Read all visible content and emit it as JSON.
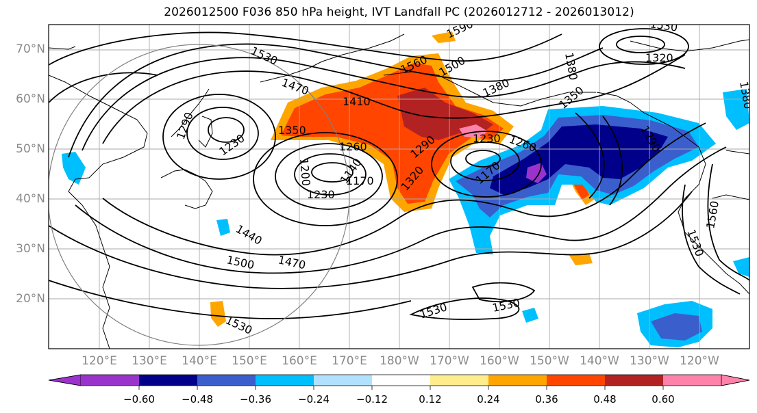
{
  "title": "2026012500 F036 850 hPa height, IVT Landfall PC (2026012712 - 2026013012)",
  "map": {
    "lat_labels": [
      "70°N",
      "60°N",
      "50°N",
      "40°N",
      "30°N",
      "20°N"
    ],
    "lon_labels": [
      "120°E",
      "130°E",
      "140°E",
      "150°E",
      "160°E",
      "170°E",
      "180°W",
      "170°W",
      "160°W",
      "150°W",
      "140°W",
      "130°W",
      "120°W"
    ],
    "contour_labels": [
      "1590",
      "1530",
      "1560",
      "1500",
      "1470",
      "1410",
      "1380",
      "1350",
      "1380",
      "1320",
      "1290",
      "1230",
      "1260",
      "1290",
      "1260",
      "1230",
      "1170",
      "1140",
      "1170",
      "1200",
      "1230",
      "1320",
      "1290",
      "1350",
      "1440",
      "1500",
      "1470",
      "1530",
      "1530",
      "1530",
      "1530",
      "1560",
      "1530",
      "1560",
      "1380"
    ]
  },
  "colorbar": {
    "tick_labels": [
      "−0.60",
      "−0.48",
      "−0.36",
      "−0.24",
      "−0.12",
      "0.12",
      "0.24",
      "0.36",
      "0.48",
      "0.60"
    ],
    "colors": [
      "#9933cc",
      "#00008b",
      "#3a5fcd",
      "#00bfff",
      "#b0e2ff",
      "#ffffff",
      "#ffec8b",
      "#ffa500",
      "#ff4500",
      "#b22222",
      "#ff82ab"
    ]
  }
}
